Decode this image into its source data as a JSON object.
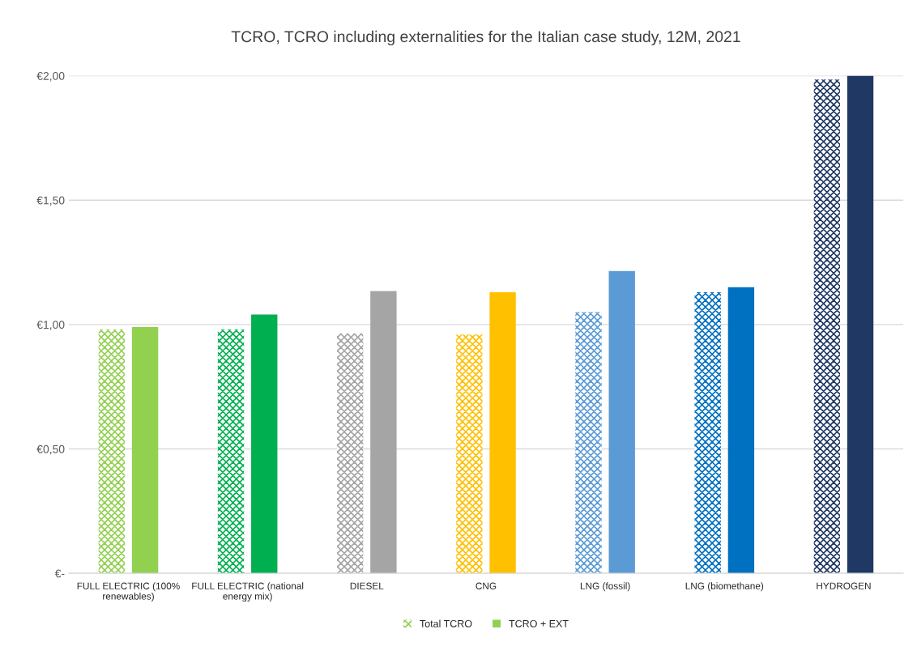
{
  "chart_data": {
    "type": "bar",
    "title": "TCRO, TCRO including externalities for the Italian case study, 12M, 2021",
    "categories": [
      "FULL ELECTRIC (100%\nrenewables)",
      "FULL ELECTRIC (national\nenergy mix)",
      "DIESEL",
      "CNG",
      "LNG (fossil)",
      "LNG (biomethane)",
      "HYDROGEN"
    ],
    "series": [
      {
        "name": "Total TCRO",
        "color": "#92d050",
        "colors": [
          "#92d050",
          "#00b050",
          "#a5a5a5",
          "#ffc000",
          "#5b9bd5",
          "#0070c0",
          "#1f3864"
        ],
        "values": [
          0.98,
          0.98,
          0.965,
          0.96,
          1.05,
          1.13,
          1.985
        ]
      },
      {
        "name": "TCRO + EXT",
        "color": "#92d050",
        "colors": [
          "#92d050",
          "#00b050",
          "#a5a5a5",
          "#ffc000",
          "#5b9bd5",
          "#0070c0",
          "#1f3864"
        ],
        "values": [
          0.99,
          1.04,
          1.135,
          1.13,
          1.215,
          1.15,
          2.0
        ]
      }
    ],
    "ylim": [
      0,
      2.0
    ],
    "yticks": [
      {
        "value": 0,
        "label": "€-"
      },
      {
        "value": 0.5,
        "label": "€0,50"
      },
      {
        "value": 1.0,
        "label": "€1,00"
      },
      {
        "value": 1.5,
        "label": "€1,50"
      },
      {
        "value": 2.0,
        "label": "€2,00"
      }
    ],
    "grid": "y",
    "legend": "bottom"
  }
}
